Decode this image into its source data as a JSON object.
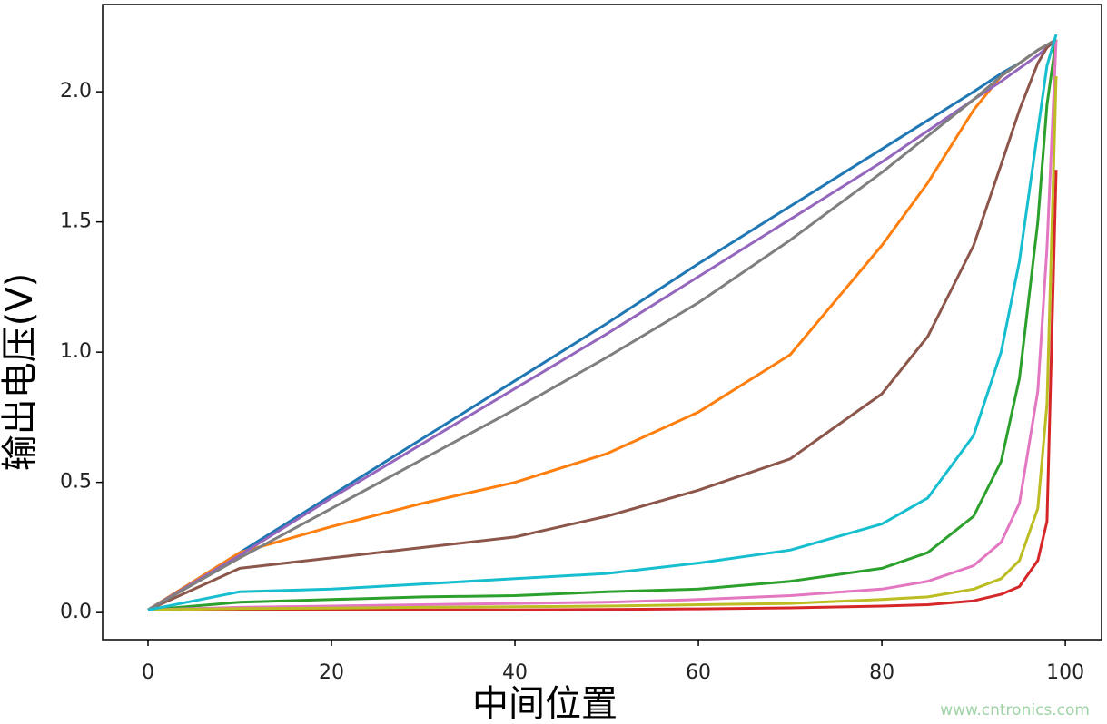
{
  "chart_data": {
    "type": "line",
    "xlabel": "中间位置",
    "ylabel": "输出电压(V)",
    "watermark": "www.cntronics.com",
    "x": [
      0,
      10,
      20,
      30,
      40,
      50,
      60,
      70,
      80,
      85,
      90,
      93,
      95,
      97,
      98,
      99
    ],
    "series": [
      {
        "color": "#1f77b4",
        "values": [
          0.01,
          0.23,
          0.45,
          0.67,
          0.89,
          1.11,
          1.34,
          1.56,
          1.78,
          1.89,
          2.0,
          2.07,
          2.11,
          2.16,
          2.18,
          2.2
        ]
      },
      {
        "color": "#ff7f0e",
        "values": [
          0.01,
          0.23,
          0.33,
          0.42,
          0.5,
          0.61,
          0.77,
          0.99,
          1.41,
          1.65,
          1.93,
          2.06,
          2.11,
          2.16,
          2.18,
          2.2
        ]
      },
      {
        "color": "#2ca02c",
        "values": [
          0.01,
          0.04,
          0.05,
          0.06,
          0.065,
          0.08,
          0.09,
          0.12,
          0.17,
          0.23,
          0.37,
          0.58,
          0.9,
          1.5,
          1.95,
          2.2
        ]
      },
      {
        "color": "#d62728",
        "values": [
          0.01,
          0.01,
          0.01,
          0.01,
          0.01,
          0.012,
          0.014,
          0.018,
          0.025,
          0.03,
          0.045,
          0.07,
          0.1,
          0.2,
          0.35,
          1.7
        ]
      },
      {
        "color": "#9467bd",
        "values": [
          0.01,
          0.22,
          0.44,
          0.65,
          0.86,
          1.07,
          1.29,
          1.51,
          1.73,
          1.85,
          1.97,
          2.04,
          2.09,
          2.14,
          2.17,
          2.2
        ]
      },
      {
        "color": "#8c564b",
        "values": [
          0.01,
          0.17,
          0.21,
          0.25,
          0.29,
          0.37,
          0.47,
          0.59,
          0.84,
          1.06,
          1.41,
          1.72,
          1.93,
          2.11,
          2.17,
          2.2
        ]
      },
      {
        "color": "#e377c2",
        "values": [
          0.01,
          0.02,
          0.025,
          0.03,
          0.035,
          0.04,
          0.05,
          0.065,
          0.09,
          0.12,
          0.18,
          0.27,
          0.42,
          0.85,
          1.4,
          2.2
        ]
      },
      {
        "color": "#7f7f7f",
        "values": [
          0.01,
          0.21,
          0.4,
          0.59,
          0.78,
          0.98,
          1.19,
          1.43,
          1.69,
          1.83,
          1.97,
          2.06,
          2.11,
          2.16,
          2.18,
          2.2
        ]
      },
      {
        "color": "#bcbd22",
        "values": [
          0.01,
          0.015,
          0.017,
          0.02,
          0.022,
          0.025,
          0.03,
          0.035,
          0.05,
          0.06,
          0.09,
          0.13,
          0.2,
          0.4,
          0.8,
          2.06
        ]
      },
      {
        "color": "#17becf",
        "values": [
          0.01,
          0.08,
          0.09,
          0.11,
          0.13,
          0.15,
          0.19,
          0.24,
          0.34,
          0.44,
          0.68,
          1.0,
          1.35,
          1.85,
          2.1,
          2.22
        ]
      }
    ],
    "xlim": [
      -4.95,
      103.95
    ],
    "ylim": [
      -0.104,
      2.335
    ],
    "xticks": [
      0,
      20,
      40,
      60,
      80,
      100
    ],
    "yticks": [
      {
        "value": 0,
        "label": "0.0"
      },
      0.5,
      {
        "value": 1,
        "label": "1.0"
      },
      1.5,
      {
        "value": 2,
        "label": "2.0"
      }
    ]
  }
}
